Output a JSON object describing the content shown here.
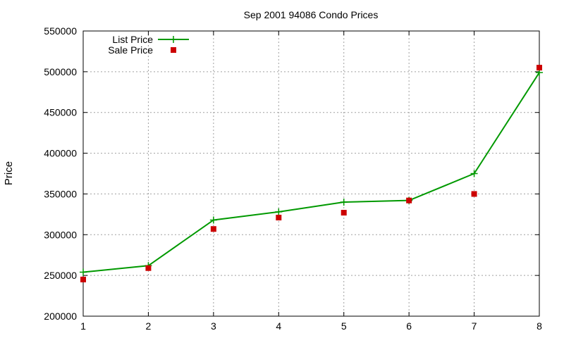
{
  "chart_data": {
    "type": "line",
    "title": "Sep 2001 94086 Condo Prices",
    "xlabel": "",
    "ylabel": "Price",
    "x": [
      1,
      2,
      3,
      4,
      5,
      6,
      7,
      8
    ],
    "xlim": [
      1,
      8
    ],
    "ylim": [
      200000,
      550000
    ],
    "x_ticks": [
      1,
      2,
      3,
      4,
      5,
      6,
      7,
      8
    ],
    "y_ticks": [
      200000,
      250000,
      300000,
      350000,
      400000,
      450000,
      500000,
      550000
    ],
    "grid": true,
    "legend_position": "top-left",
    "series": [
      {
        "name": "List Price",
        "style": "line-with-plus-markers",
        "color": "#009900",
        "values": [
          254000,
          262000,
          318000,
          328000,
          340000,
          342000,
          375000,
          499000
        ]
      },
      {
        "name": "Sale Price",
        "style": "square-markers",
        "color": "#cc0000",
        "values": [
          245000,
          259000,
          307000,
          321000,
          327000,
          342000,
          350000,
          505000
        ]
      }
    ]
  }
}
